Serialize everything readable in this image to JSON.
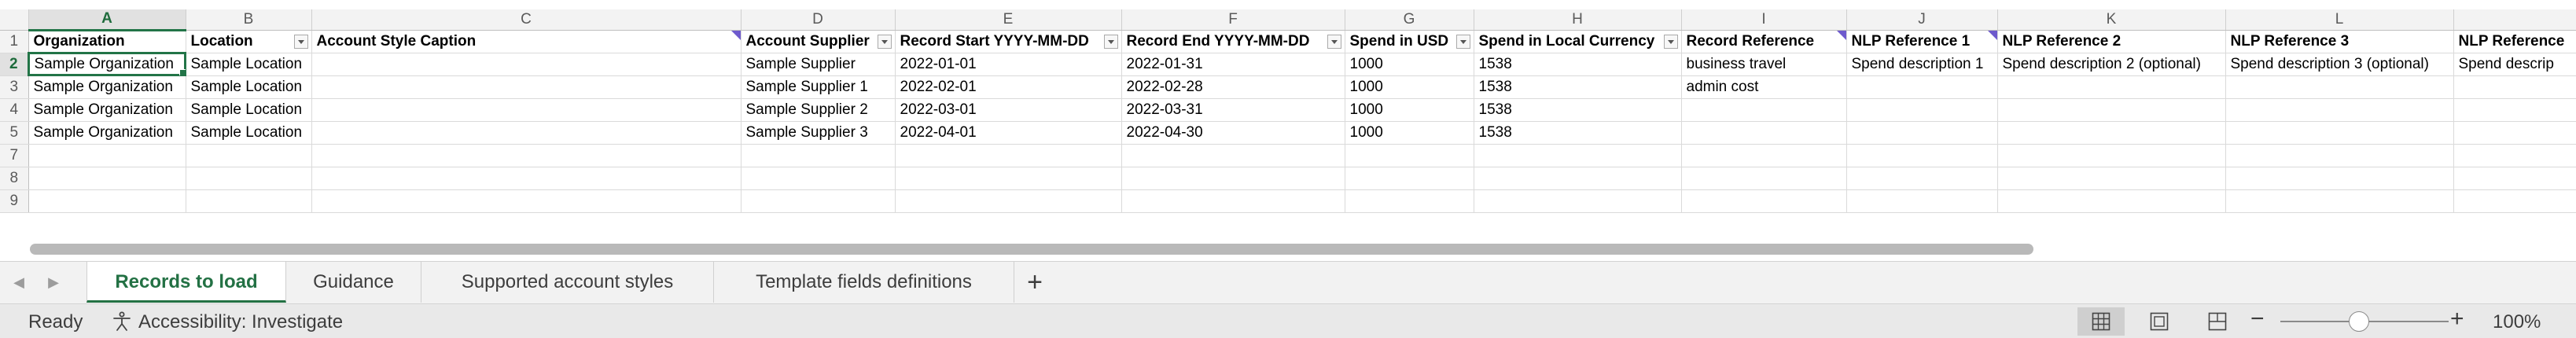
{
  "grid": {
    "columns": [
      "",
      "A",
      "B",
      "C",
      "D",
      "E",
      "F",
      "G",
      "H",
      "I",
      "J",
      "K",
      "L",
      ""
    ],
    "rows": [
      {
        "num": "1",
        "cells": [
          "Organization",
          "Location",
          "Account Style Caption",
          "Account Supplier",
          "Record Start YYYY-MM-DD",
          "Record End YYYY-MM-DD",
          "Spend in USD",
          "Spend in Local Currency",
          "Record Reference",
          "NLP Reference 1",
          "NLP Reference 2",
          "NLP Reference 3",
          "NLP Reference"
        ]
      },
      {
        "num": "2",
        "cells": [
          "Sample Organization",
          "Sample Location",
          "",
          "Sample Supplier",
          "2022-01-01",
          "2022-01-31",
          "1000",
          "1538",
          "business travel",
          "Spend description 1",
          "Spend description 2 (optional)",
          "Spend description 3 (optional)",
          "Spend descrip"
        ]
      },
      {
        "num": "3",
        "cells": [
          "Sample Organization",
          "Sample Location",
          "",
          "Sample Supplier 1",
          "2022-02-01",
          "2022-02-28",
          "1000",
          "1538",
          "admin cost",
          "",
          "",
          "",
          ""
        ]
      },
      {
        "num": "4",
        "cells": [
          "Sample Organization",
          "Sample Location",
          "",
          "Sample Supplier 2",
          "2022-03-01",
          "2022-03-31",
          "1000",
          "1538",
          "",
          "",
          "",
          "",
          ""
        ]
      },
      {
        "num": "5",
        "cells": [
          "Sample Organization",
          "Sample Location",
          "",
          "Sample Supplier 3",
          "2022-04-01",
          "2022-04-30",
          "1000",
          "1538",
          "",
          "",
          "",
          "",
          ""
        ]
      },
      {
        "num": "7",
        "cells": [
          "",
          "",
          "",
          "",
          "",
          "",
          "",
          "",
          "",
          "",
          "",
          "",
          ""
        ]
      },
      {
        "num": "8",
        "cells": [
          "",
          "",
          "",
          "",
          "",
          "",
          "",
          "",
          "",
          "",
          "",
          "",
          ""
        ]
      },
      {
        "num": "9",
        "cells": [
          "",
          "",
          "",
          "",
          "",
          "",
          "",
          "",
          "",
          "",
          "",
          "",
          ""
        ]
      }
    ]
  },
  "tabs": {
    "prev_icon": "chevron-left-icon",
    "next_icon": "chevron-right-icon",
    "items": [
      {
        "label": "Records to load"
      },
      {
        "label": "Guidance"
      },
      {
        "label": "Supported account styles"
      },
      {
        "label": "Template fields definitions"
      }
    ],
    "add_label": "+"
  },
  "status": {
    "ready": "Ready",
    "accessibility": "Accessibility: Investigate",
    "zoom_minus": "−",
    "zoom_plus": "+",
    "zoom": "100%"
  },
  "colors": {
    "accent": "#237144",
    "comment_flag": "#6e5acd"
  }
}
